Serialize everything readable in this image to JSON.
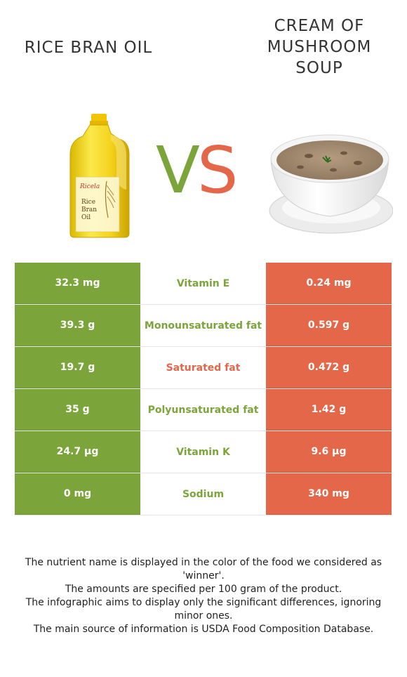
{
  "left_food": {
    "title": "RICE BRAN OIL",
    "color": "#7ba53a",
    "icon": "rice-bran-oil-bottle-image",
    "label_lines": [
      "Rice",
      "Bran",
      "Oil"
    ],
    "brand": "Ricela"
  },
  "right_food": {
    "title": "CREAM OF MUSHROOM SOUP",
    "color": "#e5674a",
    "icon": "mushroom-soup-bowl-image"
  },
  "vs": {
    "v": "V",
    "s": "S"
  },
  "rows": [
    {
      "left": "32.3 mg",
      "nutrient": "Vitamin E",
      "right": "0.24 mg",
      "winner": "left"
    },
    {
      "left": "39.3 g",
      "nutrient": "Monounsaturated fat",
      "right": "0.597 g",
      "winner": "left"
    },
    {
      "left": "19.7 g",
      "nutrient": "Saturated fat",
      "right": "0.472 g",
      "winner": "right"
    },
    {
      "left": "35 g",
      "nutrient": "Polyunsaturated fat",
      "right": "1.42 g",
      "winner": "left"
    },
    {
      "left": "24.7 µg",
      "nutrient": "Vitamin K",
      "right": "9.6 µg",
      "winner": "left"
    },
    {
      "left": "0 mg",
      "nutrient": "Sodium",
      "right": "340 mg",
      "winner": "left"
    }
  ],
  "footnotes": [
    "The nutrient name is displayed in the color of the food we considered as 'winner'.",
    "The amounts are specified per 100 gram of the product.",
    "The infographic aims to display only the significant differences, ignoring minor ones.",
    "The main source of information is USDA Food Composition Database."
  ]
}
